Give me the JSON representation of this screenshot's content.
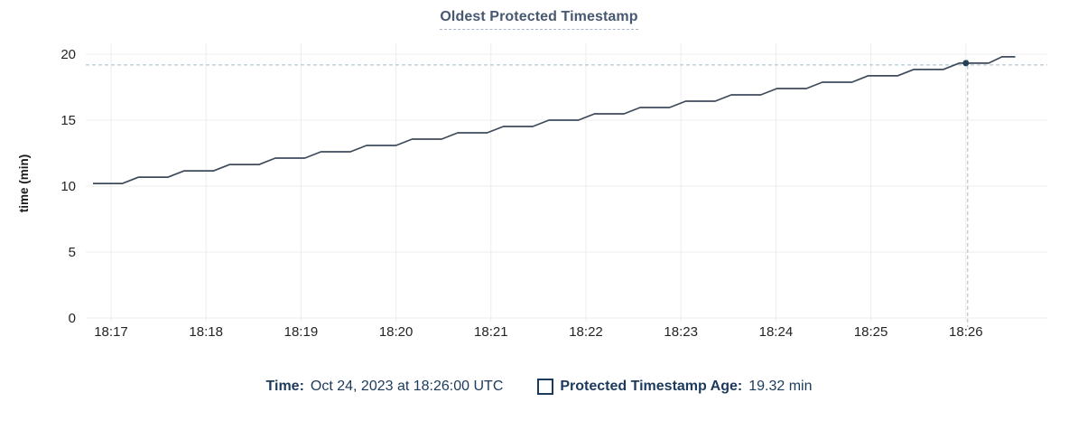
{
  "header": {
    "title": "Oldest Protected Timestamp"
  },
  "chart_data": {
    "type": "line",
    "title": "Oldest Protected Timestamp",
    "xlabel": "",
    "ylabel": "time (min)",
    "x_ticks": [
      "18:17",
      "18:18",
      "18:19",
      "18:20",
      "18:21",
      "18:22",
      "18:23",
      "18:24",
      "18:25",
      "18:26"
    ],
    "y_ticks": [
      0,
      5,
      10,
      15,
      20
    ],
    "ylim": [
      0,
      20
    ],
    "grid": true,
    "legend_position": "bottom",
    "series": [
      {
        "name": "Protected Timestamp Age",
        "points": [
          [
            -0.19,
            10.2
          ],
          [
            0.12,
            10.2
          ],
          [
            0.29,
            10.68
          ],
          [
            0.6,
            10.68
          ],
          [
            0.77,
            11.16
          ],
          [
            1.08,
            11.16
          ],
          [
            1.25,
            11.64
          ],
          [
            1.56,
            11.64
          ],
          [
            1.73,
            12.12
          ],
          [
            2.04,
            12.12
          ],
          [
            2.21,
            12.6
          ],
          [
            2.52,
            12.6
          ],
          [
            2.69,
            13.08
          ],
          [
            3.0,
            13.08
          ],
          [
            3.17,
            13.56
          ],
          [
            3.48,
            13.56
          ],
          [
            3.65,
            14.04
          ],
          [
            3.96,
            14.04
          ],
          [
            4.13,
            14.52
          ],
          [
            4.44,
            14.52
          ],
          [
            4.61,
            15.0
          ],
          [
            4.92,
            15.0
          ],
          [
            5.09,
            15.48
          ],
          [
            5.4,
            15.48
          ],
          [
            5.57,
            15.96
          ],
          [
            5.88,
            15.96
          ],
          [
            6.05,
            16.44
          ],
          [
            6.36,
            16.44
          ],
          [
            6.53,
            16.92
          ],
          [
            6.84,
            16.92
          ],
          [
            7.01,
            17.4
          ],
          [
            7.32,
            17.4
          ],
          [
            7.49,
            17.88
          ],
          [
            7.8,
            17.88
          ],
          [
            7.97,
            18.36
          ],
          [
            8.28,
            18.36
          ],
          [
            8.45,
            18.84
          ],
          [
            8.76,
            18.84
          ],
          [
            8.93,
            19.32
          ],
          [
            9.24,
            19.32
          ],
          [
            9.38,
            19.8
          ],
          [
            9.52,
            19.8
          ]
        ]
      }
    ],
    "hover": {
      "x_tick": "18:26",
      "x_minutes": 9.0,
      "value": 19.32,
      "time_label": "Oct 24, 2023 at 18:26:00 UTC",
      "value_label": "19.32 min"
    },
    "colors": {
      "line": "#3e4a5c",
      "dot": "#274059",
      "grid": "#ececec",
      "tick_text": "#242424",
      "crosshair": "#a3bac9",
      "title_text": "#475872",
      "legend_text": "#1c3a5c"
    }
  },
  "footer": {
    "time_label": "Time:",
    "time_value": "Oct 24, 2023 at 18:26:00 UTC",
    "series_label": "Protected Timestamp Age:",
    "series_value": "19.32 min"
  }
}
